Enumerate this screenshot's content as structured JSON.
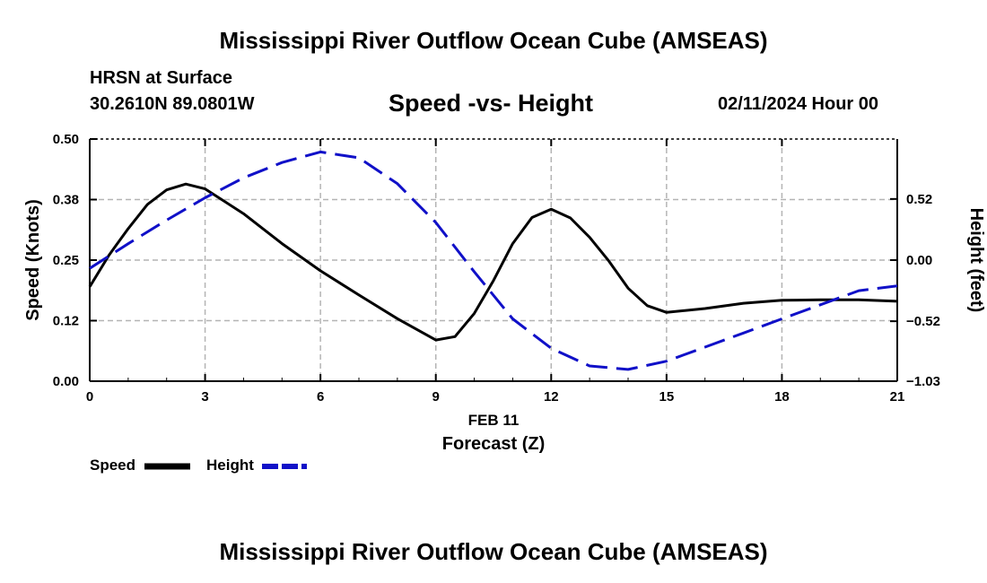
{
  "header": {
    "title": "Mississippi River Outflow Ocean Cube (AMSEAS)",
    "station": "HRSN at Surface",
    "coords": "30.2610N  89.0801W",
    "subtitle": "Speed -vs- Height",
    "datetime": "02/11/2024 Hour 00"
  },
  "footer": {
    "title": "Mississippi River Outflow Ocean Cube (AMSEAS)"
  },
  "legend": {
    "speed": "Speed",
    "height": "Height"
  },
  "colors": {
    "speed": "#000000",
    "height": "#1010c8",
    "grid": "#b4b4b4"
  },
  "chart_data": {
    "type": "line",
    "title": "Speed -vs- Height",
    "xlabel": "Forecast (Z)",
    "xlabel_date": "FEB 11",
    "ylabel": "Speed (Knots)",
    "y2label": "Height (feet)",
    "xlim": [
      0,
      21
    ],
    "ylim": [
      0,
      0.5
    ],
    "y2lim": [
      -1.03,
      1.03
    ],
    "x_ticks": [
      0,
      3,
      6,
      9,
      12,
      15,
      18,
      21
    ],
    "x_tick_labels": [
      "0",
      "3",
      "6",
      "9",
      "12",
      "15",
      "18",
      "21"
    ],
    "y_ticks": [
      0,
      0.125,
      0.25,
      0.375,
      0.5
    ],
    "y_tick_labels": [
      "0.00",
      "0.12",
      "0.25",
      "0.38",
      "0.50"
    ],
    "y2_ticks": [
      -1.03,
      -0.52,
      0.0,
      0.52
    ],
    "y2_tick_labels": [
      "−1.03",
      "−0.52",
      "0.00",
      "0.52"
    ],
    "grid": true,
    "series": [
      {
        "name": "Speed",
        "axis": "left",
        "style": "solid",
        "x": [
          0,
          0.5,
          1,
          1.5,
          2,
          2.5,
          3,
          4,
          5,
          6,
          7,
          8,
          9,
          9.5,
          10,
          10.5,
          11,
          11.5,
          12,
          12.5,
          13,
          13.5,
          14,
          14.5,
          15,
          16,
          17,
          18,
          19,
          20,
          21
        ],
        "values": [
          0.195,
          0.26,
          0.315,
          0.365,
          0.395,
          0.407,
          0.397,
          0.346,
          0.284,
          0.228,
          0.178,
          0.129,
          0.085,
          0.092,
          0.14,
          0.208,
          0.284,
          0.338,
          0.355,
          0.337,
          0.297,
          0.248,
          0.192,
          0.156,
          0.142,
          0.15,
          0.161,
          0.167,
          0.168,
          0.168,
          0.165
        ]
      },
      {
        "name": "Height",
        "axis": "right",
        "style": "dashed",
        "x": [
          0,
          1,
          2,
          3,
          4,
          5,
          6,
          7,
          8,
          9,
          10,
          11,
          12,
          13,
          14,
          15,
          16,
          17,
          18,
          19,
          20,
          21
        ],
        "values": [
          -0.07,
          0.14,
          0.34,
          0.53,
          0.7,
          0.83,
          0.92,
          0.87,
          0.65,
          0.32,
          -0.1,
          -0.5,
          -0.75,
          -0.9,
          -0.93,
          -0.86,
          -0.74,
          -0.62,
          -0.5,
          -0.38,
          -0.26,
          -0.22
        ]
      }
    ]
  }
}
